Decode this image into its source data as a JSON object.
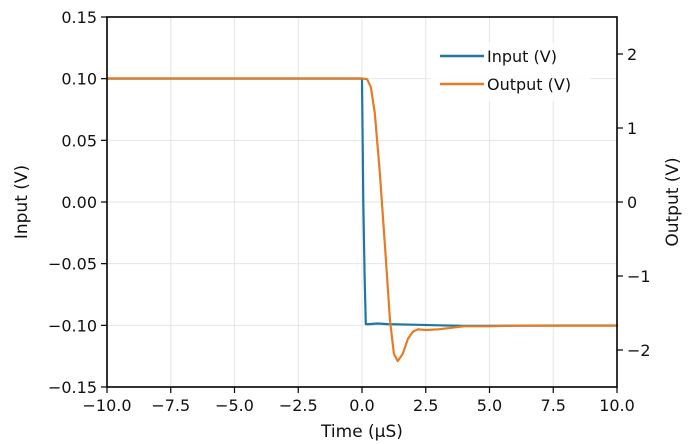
{
  "chart_data": {
    "type": "line",
    "title": "",
    "xlabel": "Time (μS)",
    "ylabel_left": "Input (V)",
    "ylabel_right": "Output (V)",
    "xlim": [
      -10,
      10
    ],
    "ylim_left": [
      -0.15,
      0.15
    ],
    "ylim_right": [
      -2.5,
      2.5
    ],
    "x_ticks": [
      -10,
      -7.5,
      -5,
      -2.5,
      0,
      2.5,
      5,
      7.5,
      10
    ],
    "x_tick_labels": [
      "−10.0",
      "−7.5",
      "−5.0",
      "−2.5",
      "0.0",
      "2.5",
      "5.0",
      "7.5",
      "10.0"
    ],
    "y_left_ticks": [
      -0.15,
      -0.1,
      -0.05,
      0.0,
      0.05,
      0.1,
      0.15
    ],
    "y_left_tick_labels": [
      "−0.15",
      "−0.10",
      "−0.05",
      "0.00",
      "0.05",
      "0.10",
      "0.15"
    ],
    "y_right_ticks": [
      -2,
      -1,
      0,
      1,
      2
    ],
    "y_right_tick_labels": [
      "−2",
      "−1",
      "0",
      "1",
      "2"
    ],
    "grid": true,
    "legend_position": "top-right",
    "series": [
      {
        "name": "Input (V)",
        "axis": "left",
        "color": "#1f77a0",
        "x": [
          -10,
          -5,
          0,
          0.02,
          0.05,
          0.1,
          0.15,
          0.3,
          0.6,
          1.0,
          2.0,
          3.0,
          4.0,
          5.0,
          6.0,
          8.0,
          10.0
        ],
        "y": [
          0.1,
          0.1,
          0.1,
          0.06,
          0.0,
          -0.06,
          -0.099,
          -0.099,
          -0.0985,
          -0.099,
          -0.0995,
          -0.1,
          -0.1005,
          -0.1005,
          -0.1002,
          -0.1001,
          -0.1001
        ]
      },
      {
        "name": "Output (V)",
        "axis": "right",
        "color": "#e57c25",
        "x": [
          -10,
          -5,
          0,
          0.2,
          0.35,
          0.5,
          0.7,
          0.9,
          1.1,
          1.25,
          1.4,
          1.6,
          1.8,
          2.0,
          2.2,
          2.5,
          3.0,
          3.5,
          4.0,
          5.0,
          6.0,
          8.0,
          10.0
        ],
        "y": [
          1.67,
          1.67,
          1.67,
          1.66,
          1.55,
          1.2,
          0.4,
          -0.6,
          -1.6,
          -2.05,
          -2.15,
          -2.05,
          -1.85,
          -1.75,
          -1.72,
          -1.73,
          -1.72,
          -1.7,
          -1.68,
          -1.68,
          -1.67,
          -1.67,
          -1.67
        ]
      }
    ]
  }
}
